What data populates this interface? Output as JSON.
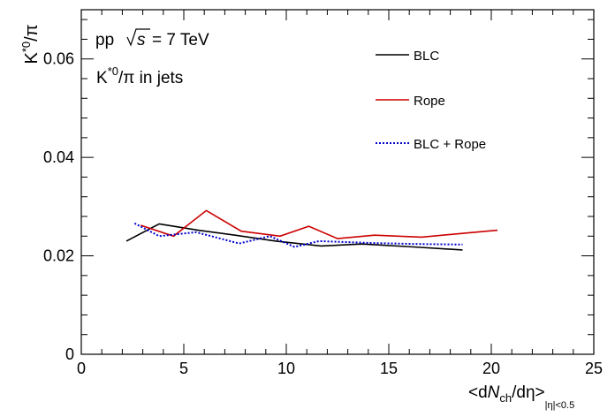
{
  "chart_data": {
    "type": "line",
    "xlabel": "<dNch/dη>|η|<0.5",
    "ylabel": "K*0/π",
    "xlim": [
      0,
      25
    ],
    "ylim": [
      0,
      0.07
    ],
    "x_ticks": [
      0,
      5,
      10,
      15,
      20,
      25
    ],
    "y_ticks": [
      0,
      0.02,
      0.04,
      0.06
    ],
    "x_tick_labels": [
      "0",
      "5",
      "10",
      "15",
      "20",
      "25"
    ],
    "y_tick_labels": [
      "0",
      "0.02",
      "0.04",
      "0.06"
    ],
    "grid": false,
    "legend_position": "top-right",
    "annotations": {
      "system_prefix": "pp",
      "energy_suffix": "= 7 TeV",
      "s_symbol": "s",
      "obs_main": "K",
      "obs_super": "*0",
      "obs_tail": "/π in jets"
    },
    "series": [
      {
        "name": "BLC",
        "color": "#000000",
        "style": "solid",
        "x": [
          2.2,
          3.8,
          5.7,
          7.5,
          9.5,
          11.7,
          13.7,
          16.2,
          18.6
        ],
        "y": [
          0.023,
          0.0265,
          0.0252,
          0.0242,
          0.023,
          0.022,
          0.0224,
          0.0218,
          0.0212
        ]
      },
      {
        "name": "Rope",
        "color": "#cc0000",
        "style": "solid",
        "x": [
          2.9,
          4.5,
          6.1,
          7.8,
          9.7,
          11.1,
          12.5,
          14.3,
          16.6,
          18.7,
          20.3
        ],
        "y": [
          0.0262,
          0.024,
          0.0292,
          0.025,
          0.024,
          0.026,
          0.0235,
          0.0242,
          0.0238,
          0.0246,
          0.0252
        ]
      },
      {
        "name": "BLC + Rope",
        "color": "#0000cc",
        "style": "dotted",
        "x": [
          2.6,
          3.8,
          5.6,
          7.7,
          9.2,
          10.4,
          11.6,
          14.2,
          16.4,
          18.6
        ],
        "y": [
          0.0266,
          0.024,
          0.0248,
          0.0225,
          0.024,
          0.0218,
          0.023,
          0.0226,
          0.0224,
          0.0223
        ]
      }
    ]
  }
}
